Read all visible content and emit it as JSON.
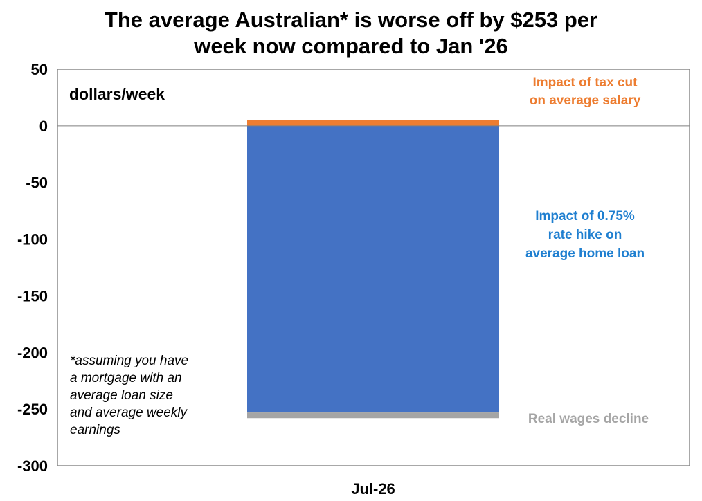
{
  "chart_data": {
    "type": "bar",
    "stacked": true,
    "title_lines": [
      "The average Australian* is worse off by $253 per",
      "week now compared to Jan '26"
    ],
    "unit_label": "dollars/week",
    "categories": [
      "Jul-26"
    ],
    "ylim": [
      -300,
      50
    ],
    "yticks": [
      50,
      0,
      -50,
      -100,
      -150,
      -200,
      -250,
      -300
    ],
    "grid": false,
    "series": [
      {
        "name_lines": [
          "Impact of tax cut",
          "on average salary"
        ],
        "values": [
          5
        ],
        "color": "#ED7D31"
      },
      {
        "name_lines": [
          "Impact of 0.75%",
          "rate hike on",
          "average home loan"
        ],
        "values": [
          -253
        ],
        "color": "#4472C4",
        "label_color": "#1F7FD0"
      },
      {
        "name_lines": [
          "Real wages decline"
        ],
        "values": [
          -5
        ],
        "color": "#A5A5A5",
        "label_color": "#A5A5A5"
      }
    ],
    "footnote_lines": [
      "*assuming you have",
      "a mortgage with an",
      "average loan size",
      "and average weekly",
      "earnings"
    ]
  }
}
